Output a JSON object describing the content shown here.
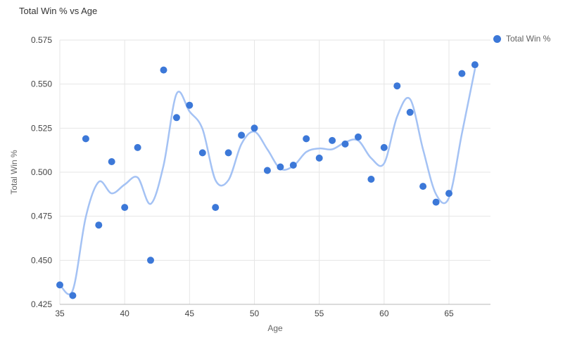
{
  "chart_data": {
    "type": "scatter",
    "title": "Total Win % vs Age",
    "xlabel": "Age",
    "ylabel": "Total Win %",
    "xlim": [
      35,
      68.2
    ],
    "ylim": [
      0.425,
      0.575
    ],
    "x_ticks": [
      "35",
      "40",
      "45",
      "50",
      "55",
      "60",
      "65"
    ],
    "y_ticks": [
      "0.425",
      "0.450",
      "0.475",
      "0.500",
      "0.525",
      "0.550",
      "0.575"
    ],
    "grid": "on",
    "legend_position": "right",
    "series": [
      {
        "name": "Total Win %",
        "color": "#3c78d8",
        "points": [
          [
            35,
            0.436
          ],
          [
            36,
            0.43
          ],
          [
            37,
            0.519
          ],
          [
            38,
            0.47
          ],
          [
            39,
            0.506
          ],
          [
            40,
            0.48
          ],
          [
            41,
            0.514
          ],
          [
            42,
            0.45
          ],
          [
            43,
            0.558
          ],
          [
            44,
            0.531
          ],
          [
            45,
            0.538
          ],
          [
            46,
            0.511
          ],
          [
            47,
            0.48
          ],
          [
            48,
            0.511
          ],
          [
            49,
            0.521
          ],
          [
            50,
            0.525
          ],
          [
            51,
            0.501
          ],
          [
            52,
            0.503
          ],
          [
            53,
            0.504
          ],
          [
            54,
            0.519
          ],
          [
            55,
            0.508
          ],
          [
            56,
            0.518
          ],
          [
            57,
            0.516
          ],
          [
            58,
            0.52
          ],
          [
            59,
            0.496
          ],
          [
            60,
            0.514
          ],
          [
            61,
            0.549
          ],
          [
            62,
            0.534
          ],
          [
            63,
            0.492
          ],
          [
            64,
            0.483
          ],
          [
            65,
            0.488
          ],
          [
            66,
            0.556
          ],
          [
            67,
            0.561
          ]
        ]
      }
    ],
    "trendline": {
      "type": "moving_average",
      "window": 2,
      "color": "#a4c2f4",
      "width": 2.5
    },
    "style": {
      "gridline": "#e6e6e6",
      "axis_line": "#b7b7b7",
      "tick_color": "#444444"
    }
  }
}
